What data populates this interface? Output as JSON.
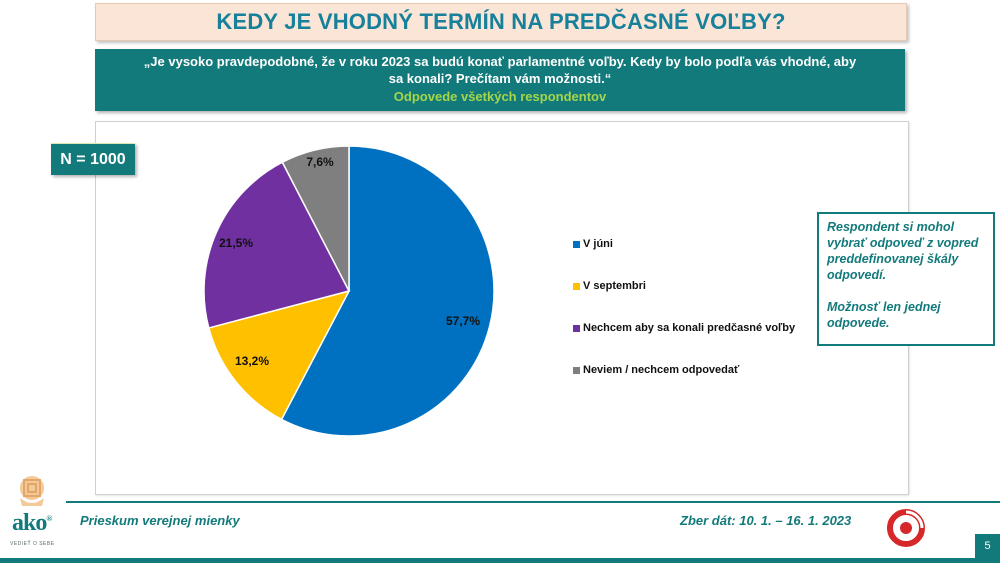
{
  "title": "KEDY JE VHODNÝ TERMÍN NA PREDČASNÉ VOĽBY?",
  "question": "„Je vysoko pravdepodobné, že v roku 2023 sa budú konať parlamentné voľby. Kedy by bolo podľa vás vhodné, aby sa konali? Prečítam vám možnosti.“",
  "question_subtitle": "Odpovede všetkých respondentov",
  "sample_size": "N = 1000",
  "note": {
    "line1": "Respondent si mohol vybrať odpoveď z vopred preddefinovanej škály odpovedí.",
    "line2": "Možnosť len jednej odpovede."
  },
  "footer": {
    "survey": "Prieskum verejnej mienky",
    "dates": "Zber dát: 10. 1. – 16. 1. 2023",
    "page": "5"
  },
  "logo": {
    "text": "ako",
    "tagline": "VEDIEŤ O SEBE",
    "registered": "®"
  },
  "colors": {
    "accent": "#137a7b",
    "title": "#17809a",
    "subtitle": "#a4d64a"
  },
  "chart_data": {
    "type": "pie",
    "start_angle_deg": 0,
    "direction": "clockwise",
    "legend_position": "right",
    "slices": [
      {
        "label": "V júni",
        "value": 57.7,
        "value_label": "57,7%",
        "color": "#0070c0"
      },
      {
        "label": "V septembri",
        "value": 13.2,
        "value_label": "13,2%",
        "color": "#ffc000"
      },
      {
        "label": "Nechcem aby sa konali predčasné voľby",
        "value": 21.5,
        "value_label": "21,5%",
        "color": "#7030a0"
      },
      {
        "label": "Neviem / nechcem odpovedať",
        "value": 7.6,
        "value_label": "7,6%",
        "color": "#7f7f7f"
      }
    ]
  }
}
